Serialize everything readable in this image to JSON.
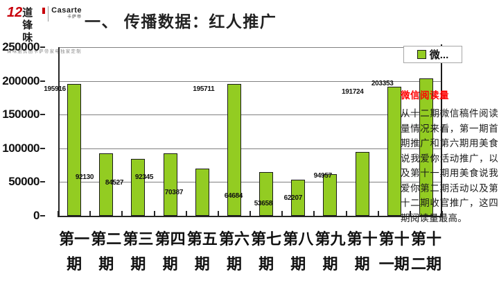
{
  "header": {
    "logo": {
      "num": "12",
      "show_cn": "道锋味",
      "partner": "Casarte",
      "partner_cn": "卡萨帝",
      "tagline": "锋味厨房由卡萨帝家电独家定制"
    },
    "title": "一、 传播数据：红人推广"
  },
  "chart_data": {
    "type": "bar",
    "title": "",
    "series_name": "微信阅读量",
    "legend_label": "微...",
    "legend_position": "top-right",
    "categories": [
      "第一期",
      "第二期",
      "第三期",
      "第四期",
      "第五期",
      "第六期",
      "第七期",
      "第八期",
      "第九期",
      "第十期",
      "第十一期",
      "第十二期"
    ],
    "categories_wrapped": [
      [
        "第一",
        "期"
      ],
      [
        "第二",
        "期"
      ],
      [
        "第三",
        "期"
      ],
      [
        "第四",
        "期"
      ],
      [
        "第五",
        "期"
      ],
      [
        "第六",
        "期"
      ],
      [
        "第七",
        "期"
      ],
      [
        "第八",
        "期"
      ],
      [
        "第九",
        "期"
      ],
      [
        "第十",
        "期"
      ],
      [
        "第十",
        "一期"
      ],
      [
        "第十",
        "二期"
      ]
    ],
    "values": [
      195916,
      92130,
      84527,
      92345,
      70387,
      195711,
      64684,
      53658,
      62207,
      94957,
      191724,
      203353
    ],
    "xlabel": "",
    "ylabel": "",
    "ylim": [
      0,
      250000
    ],
    "ytick_step": 50000,
    "yticks": [
      "0",
      "50000",
      "100000",
      "150000",
      "200000",
      "250000"
    ],
    "grid": true,
    "bar_color": "#93cc22",
    "bar_border_color": "#1a1a1a"
  },
  "annotation": {
    "title": "微信阅读量",
    "body": "从十二期微信稿件阅读量情况来看，第一期首期推广和第六期用美食说我爱你活动推广，以及第十一期用美食说我爱你第二期活动以及第十二期收官推广，这四期阅读量最高。"
  }
}
